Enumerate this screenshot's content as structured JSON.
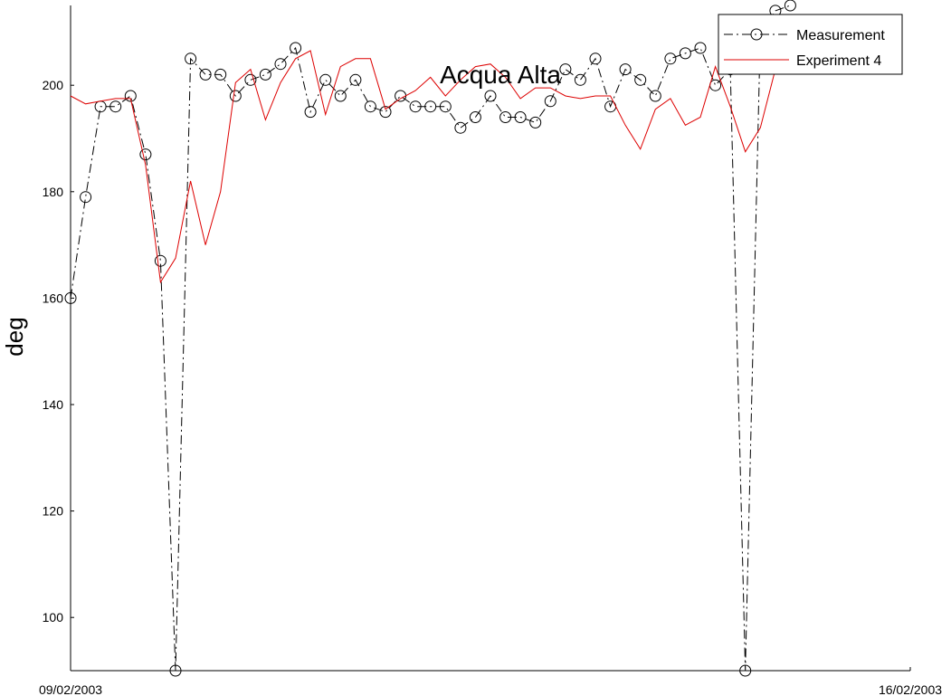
{
  "chart_data": {
    "type": "line",
    "title": "Acqua Alta",
    "xlabel": "",
    "ylabel": "deg",
    "x_tick_labels": [
      "09/02/2003",
      "16/02/2003"
    ],
    "x_range": [
      "09/02/2003 00:00",
      "16/02/2003 00:00"
    ],
    "ylim": [
      90,
      215
    ],
    "yticks": [
      100,
      120,
      140,
      160,
      180,
      200
    ],
    "grid": false,
    "legend": "top-right",
    "series": [
      {
        "name": "Measurement",
        "color": "#000000",
        "style": "dash-dot with circle markers",
        "x": [
          "09/02/2003 00:00",
          "09/02/2003 03:00",
          "09/02/2003 06:00",
          "09/02/2003 09:00",
          "09/02/2003 12:00",
          "09/02/2003 15:00",
          "09/02/2003 18:00",
          "09/02/2003 21:00",
          "10/02/2003 00:00",
          "10/02/2003 03:00",
          "10/02/2003 06:00",
          "10/02/2003 09:00",
          "10/02/2003 12:00",
          "10/02/2003 15:00",
          "10/02/2003 18:00",
          "10/02/2003 21:00",
          "11/02/2003 00:00",
          "11/02/2003 03:00",
          "11/02/2003 06:00",
          "11/02/2003 09:00",
          "11/02/2003 12:00",
          "11/02/2003 15:00",
          "11/02/2003 18:00",
          "11/02/2003 21:00",
          "12/02/2003 00:00",
          "12/02/2003 03:00",
          "12/02/2003 06:00",
          "12/02/2003 09:00",
          "12/02/2003 12:00",
          "12/02/2003 15:00",
          "12/02/2003 18:00",
          "12/02/2003 21:00",
          "13/02/2003 00:00",
          "13/02/2003 03:00",
          "13/02/2003 06:00",
          "13/02/2003 09:00",
          "13/02/2003 12:00",
          "13/02/2003 15:00",
          "13/02/2003 18:00",
          "13/02/2003 21:00",
          "14/02/2003 00:00",
          "14/02/2003 03:00",
          "14/02/2003 06:00",
          "14/02/2003 09:00",
          "14/02/2003 12:00",
          "14/02/2003 15:00",
          "14/02/2003 18:00",
          "14/02/2003 21:00",
          "15/02/2003 00:00"
        ],
        "values": [
          160,
          179,
          196,
          196,
          198,
          187,
          167,
          90,
          205,
          202,
          202,
          198,
          201,
          202,
          204,
          207,
          195,
          201,
          198,
          201,
          196,
          195,
          198,
          196,
          196,
          196,
          192,
          194,
          198,
          194,
          194,
          193,
          197,
          203,
          201,
          205,
          196,
          203,
          201,
          198,
          205,
          206,
          207,
          200,
          203,
          90,
          210,
          214,
          215
        ]
      },
      {
        "name": "Experiment 4",
        "color": "#dd0000",
        "style": "solid",
        "x": [
          "09/02/2003 00:00",
          "09/02/2003 03:00",
          "09/02/2003 06:00",
          "09/02/2003 09:00",
          "09/02/2003 12:00",
          "09/02/2003 15:00",
          "09/02/2003 18:00",
          "09/02/2003 21:00",
          "10/02/2003 00:00",
          "10/02/2003 03:00",
          "10/02/2003 06:00",
          "10/02/2003 09:00",
          "10/02/2003 12:00",
          "10/02/2003 15:00",
          "10/02/2003 18:00",
          "10/02/2003 21:00",
          "11/02/2003 00:00",
          "11/02/2003 03:00",
          "11/02/2003 06:00",
          "11/02/2003 09:00",
          "11/02/2003 12:00",
          "11/02/2003 15:00",
          "11/02/2003 18:00",
          "11/02/2003 21:00",
          "12/02/2003 00:00",
          "12/02/2003 03:00",
          "12/02/2003 06:00",
          "12/02/2003 09:00",
          "12/02/2003 12:00",
          "12/02/2003 15:00",
          "12/02/2003 18:00",
          "12/02/2003 21:00",
          "13/02/2003 00:00",
          "13/02/2003 03:00",
          "13/02/2003 06:00",
          "13/02/2003 09:00",
          "13/02/2003 12:00",
          "13/02/2003 15:00",
          "13/02/2003 18:00",
          "13/02/2003 21:00",
          "14/02/2003 00:00",
          "14/02/2003 03:00",
          "14/02/2003 06:00",
          "14/02/2003 09:00",
          "14/02/2003 12:00",
          "14/02/2003 15:00",
          "14/02/2003 18:00",
          "14/02/2003 21:00"
        ],
        "values": [
          198,
          196.5,
          197,
          197.5,
          197.5,
          185,
          163,
          167.5,
          182,
          170,
          180,
          200.5,
          203,
          193.5,
          200.5,
          205,
          206.5,
          194.5,
          203.5,
          205,
          205,
          195.5,
          197.5,
          199,
          201.5,
          198,
          201,
          203.5,
          204,
          201.5,
          197.5,
          199.5,
          199.5,
          198,
          197.5,
          198,
          198,
          192.5,
          188,
          195.5,
          197.5,
          192.5,
          194,
          203.5,
          196,
          187.5,
          192,
          203
        ]
      }
    ]
  }
}
